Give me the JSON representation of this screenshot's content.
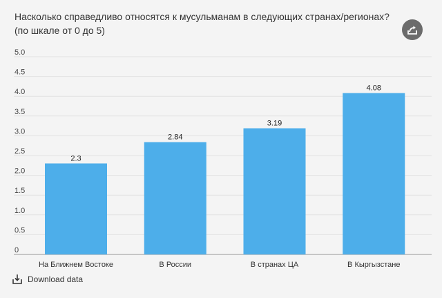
{
  "chart_data": {
    "type": "bar",
    "title": "Насколько справедливо относятся к мусульманам в следующих странах/регионах? (по шкале от 0 до 5)",
    "categories": [
      "На Ближнем Востоке",
      "В России",
      "В странах ЦА",
      "В Кыргызстане"
    ],
    "values": [
      2.3,
      2.84,
      3.19,
      4.08
    ],
    "value_labels": [
      "2.3",
      "2.84",
      "3.19",
      "4.08"
    ],
    "ylim": [
      0,
      5
    ],
    "yticks": [
      "0",
      "0.5",
      "1.0",
      "1.5",
      "2.0",
      "2.5",
      "3.0",
      "3.5",
      "4.0",
      "4.5",
      "5.0"
    ],
    "grid": true,
    "legend": "none",
    "bar_color": "#4daeea"
  },
  "share": {
    "icon": "share-icon"
  },
  "download": {
    "label": "Download data",
    "icon": "download-icon"
  }
}
